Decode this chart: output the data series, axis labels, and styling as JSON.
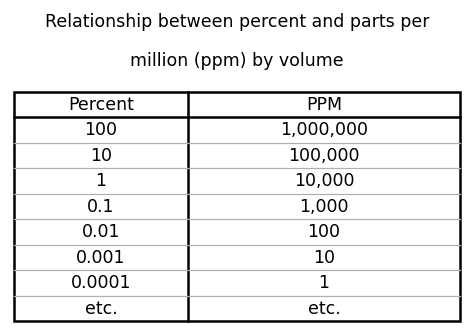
{
  "title_line1": "Relationship between percent and parts per",
  "title_line2": "million (ppm) by volume",
  "title_fontsize": 12.5,
  "col_headers": [
    "Percent",
    "PPM"
  ],
  "rows": [
    [
      "100",
      "1,000,000"
    ],
    [
      "10",
      "100,000"
    ],
    [
      "1",
      "10,000"
    ],
    [
      "0.1",
      "1,000"
    ],
    [
      "0.01",
      "100"
    ],
    [
      "0.001",
      "10"
    ],
    [
      "0.0001",
      "1"
    ],
    [
      "etc.",
      "etc."
    ]
  ],
  "header_fontsize": 12.5,
  "cell_fontsize": 12.5,
  "bg_color": "#ffffff",
  "border_color": "#000000",
  "grid_color": "#b0b0b0",
  "text_color": "#000000",
  "col_split": 0.39
}
